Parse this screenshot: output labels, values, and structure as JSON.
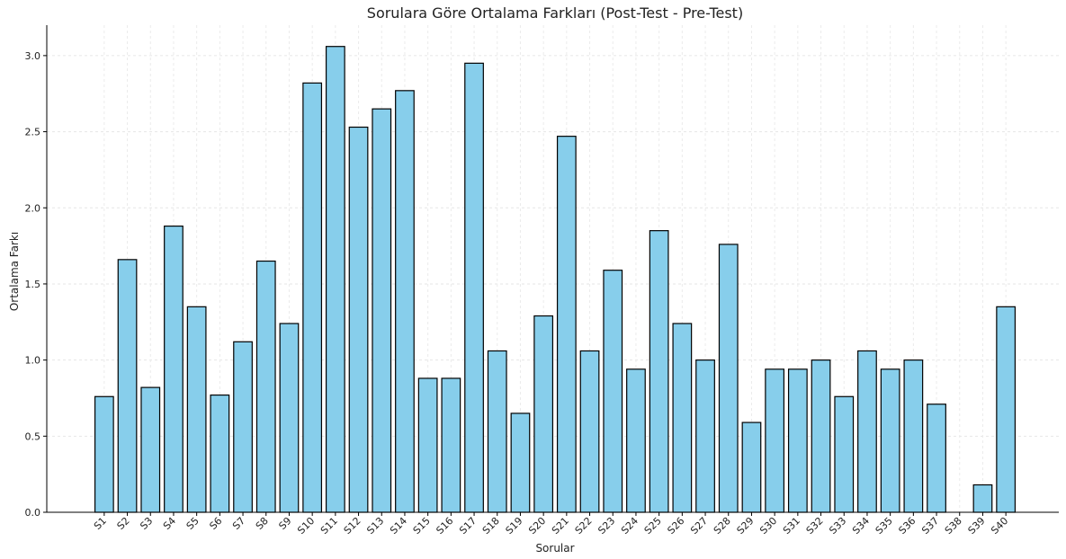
{
  "chart_data": {
    "type": "bar",
    "title": "Sorulara Göre Ortalama Farkları (Post-Test - Pre-Test)",
    "xlabel": "Sorular",
    "ylabel": "Ortalama Farkı",
    "ylim": [
      0,
      3.2
    ],
    "yticks": [
      "0.0",
      "0.5",
      "1.0",
      "1.5",
      "2.0",
      "2.5",
      "3.0"
    ],
    "grid": true,
    "bar_color": "#87CEEB",
    "edge_color": "#000000",
    "categories": [
      "S1",
      "S2",
      "S3",
      "S4",
      "S5",
      "S6",
      "S7",
      "S8",
      "S9",
      "S10",
      "S11",
      "S12",
      "S13",
      "S14",
      "S15",
      "S16",
      "S17",
      "S18",
      "S19",
      "S20",
      "S21",
      "S22",
      "S23",
      "S24",
      "S25",
      "S26",
      "S27",
      "S28",
      "S29",
      "S30",
      "S31",
      "S32",
      "S33",
      "S34",
      "S35",
      "S36",
      "S37",
      "S38",
      "S39",
      "S40"
    ],
    "values": [
      0.76,
      1.66,
      0.82,
      1.88,
      1.35,
      0.77,
      1.12,
      1.65,
      1.24,
      2.82,
      3.06,
      2.53,
      2.65,
      2.77,
      0.88,
      0.88,
      2.95,
      1.06,
      0.65,
      1.29,
      2.47,
      1.06,
      1.59,
      0.94,
      1.85,
      1.24,
      1.0,
      1.76,
      0.59,
      0.94,
      0.94,
      1.0,
      0.76,
      1.06,
      0.94,
      1.0,
      0.71,
      0.0,
      0.18,
      1.35
    ]
  }
}
